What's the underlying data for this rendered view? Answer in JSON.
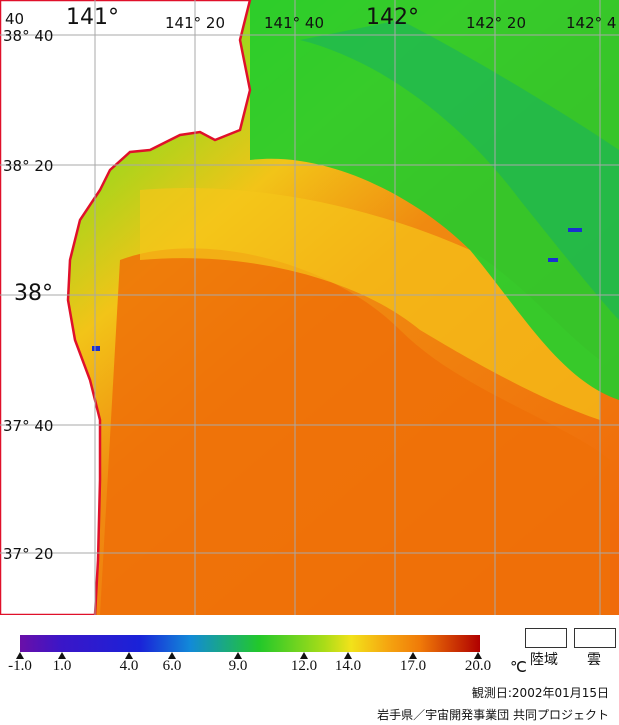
{
  "map": {
    "lon_labels": [
      "141°",
      "141° 20",
      "141° 40",
      "142°",
      "142° 20",
      "142° 4"
    ],
    "corner_top": "40",
    "lat_labels": [
      "38° 40",
      "38° 20",
      "38°",
      "37° 40",
      "37° 20"
    ]
  },
  "legend": {
    "ticks": [
      "-1.0",
      "1.0",
      "4.0",
      "6.0",
      "9.0",
      "12.0",
      "14.0",
      "17.0",
      "20.0"
    ],
    "unit": "℃",
    "land_label": "陸域",
    "cloud_label": "雲",
    "colors": {
      "min": "#6a0fa8",
      "blue": "#1a22d8",
      "green": "#22c82a",
      "yellow": "#f2e21a",
      "orange": "#f07a08",
      "max": "#b00000",
      "coast": "#e0102a"
    }
  },
  "observation_date": "観測日:2002年01月15日",
  "credit": "岩手県／宇宙開発事業団 共同プロジェクト"
}
